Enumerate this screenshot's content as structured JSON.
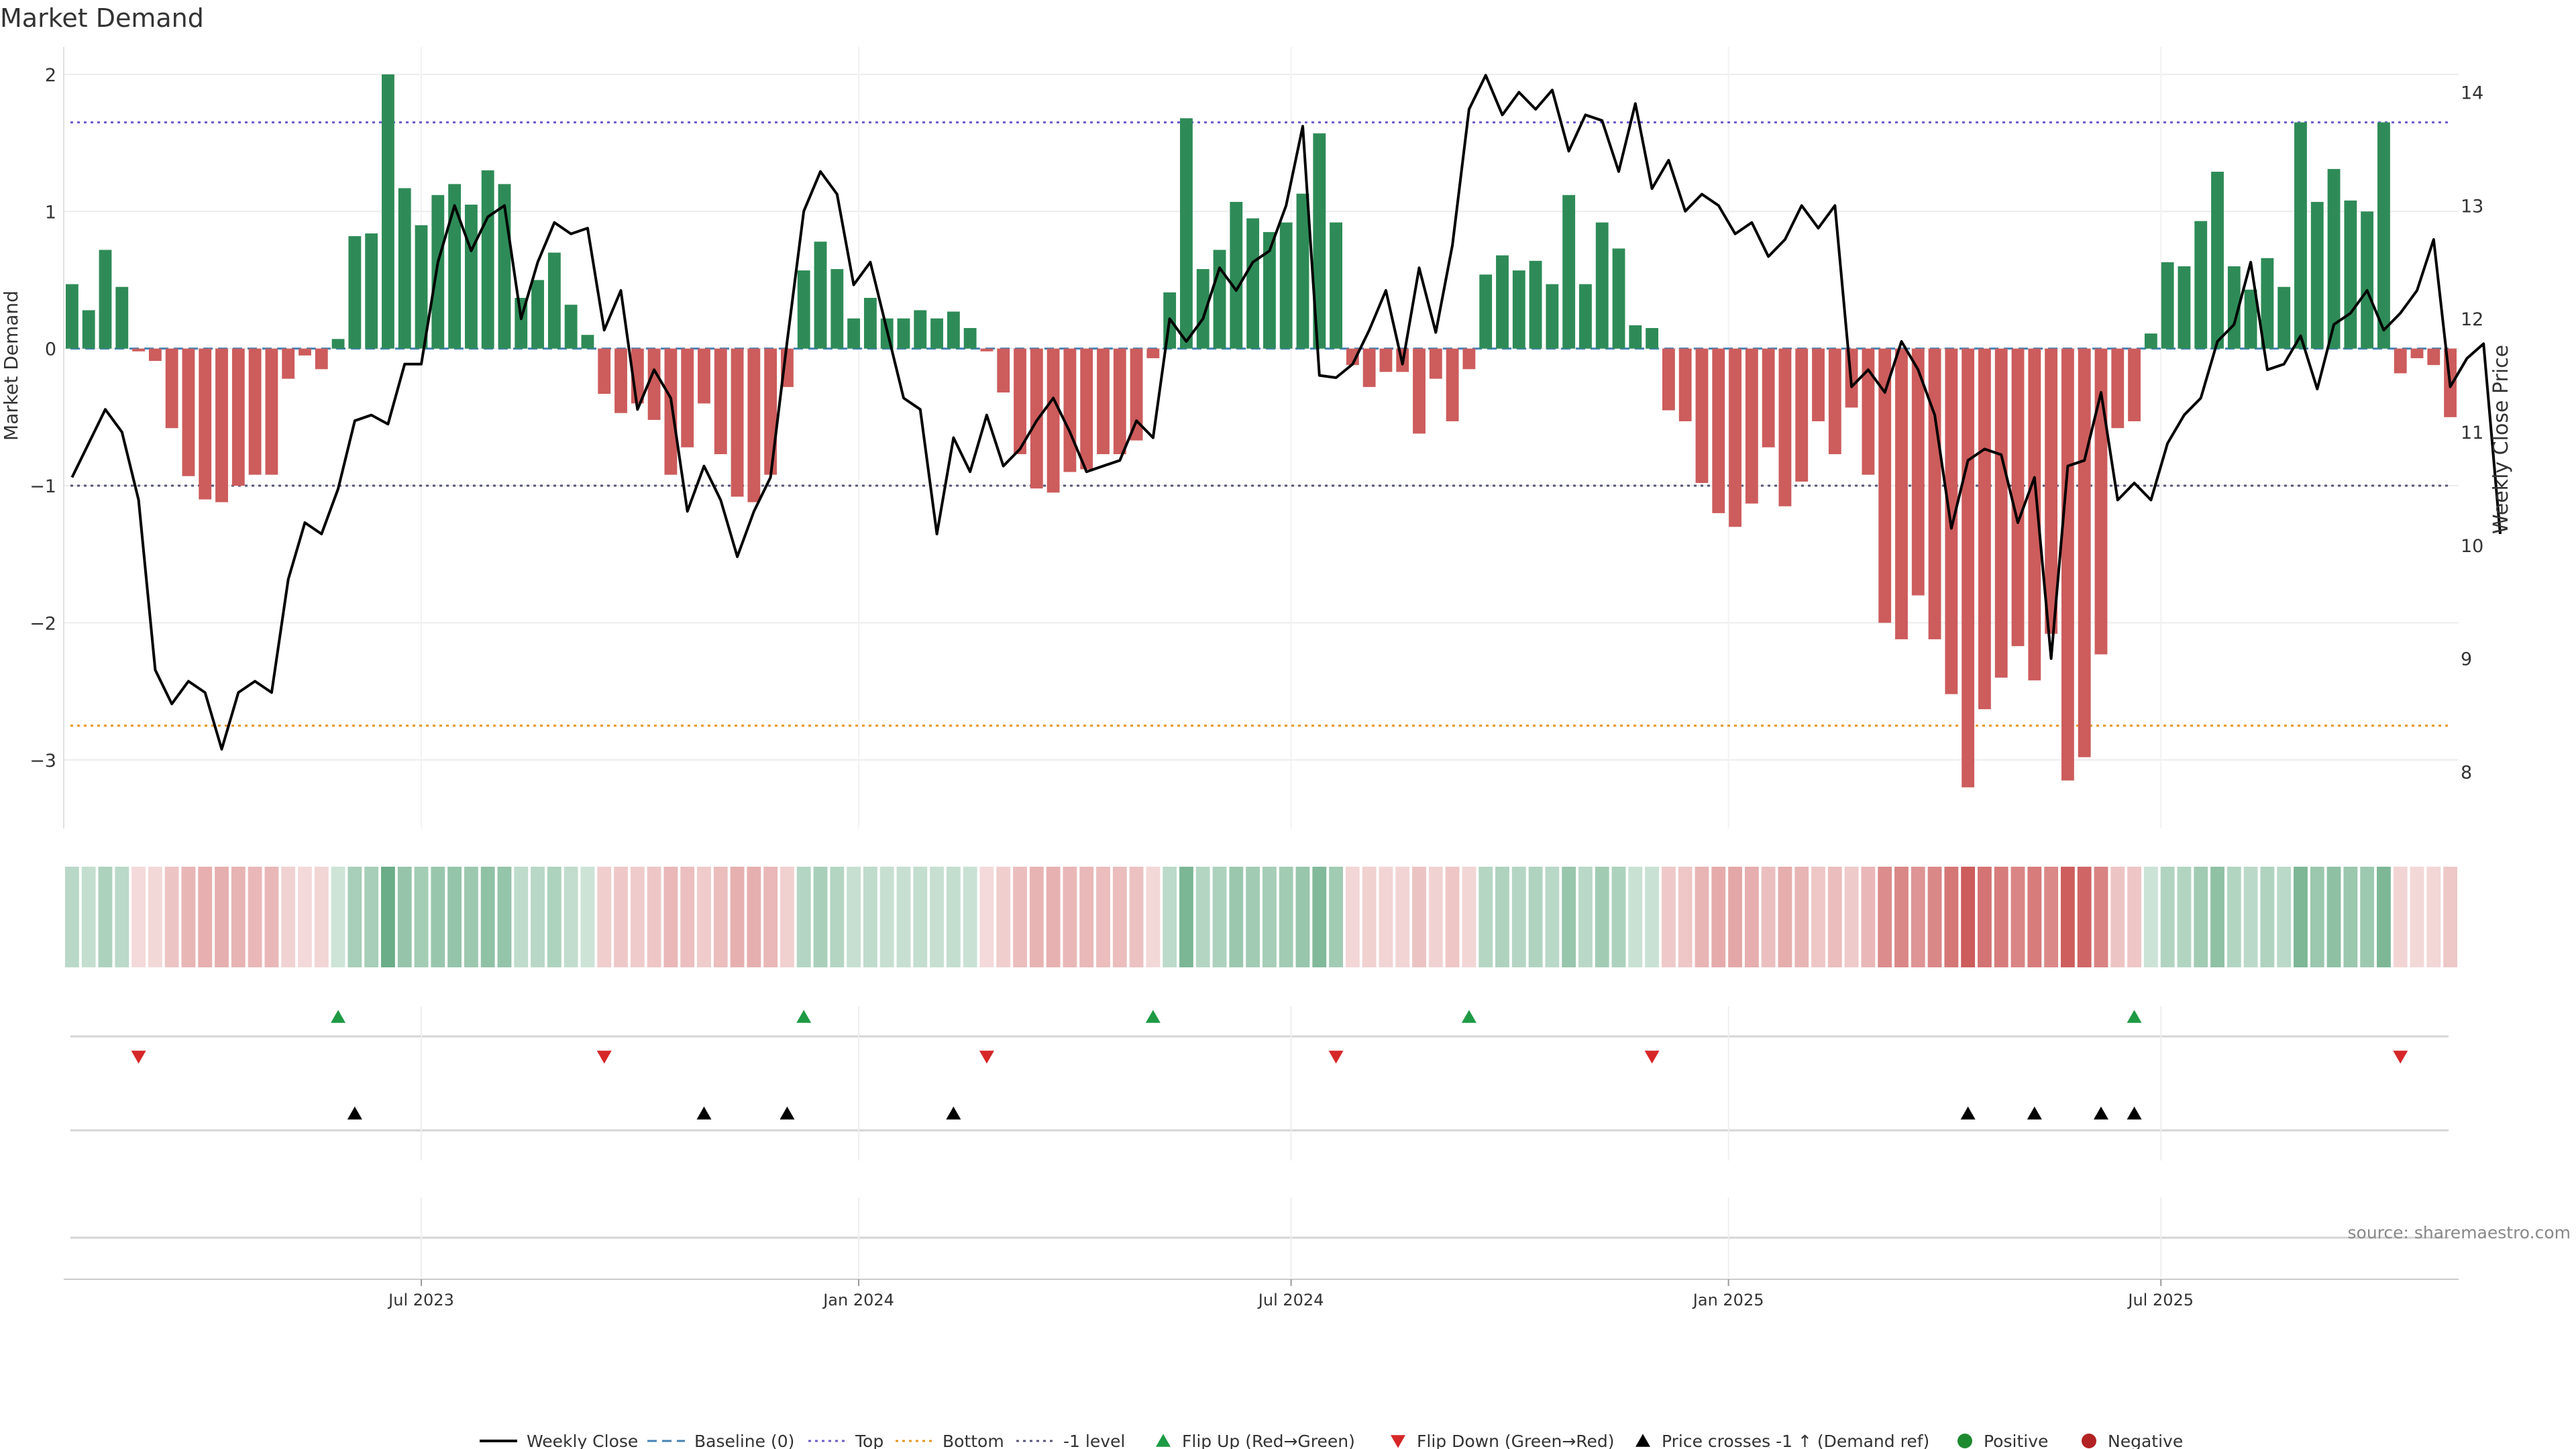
{
  "chart_data": {
    "type": "bar",
    "title": "Market Demand",
    "ylabel_left": "Market Demand",
    "ylabel_right": "Weekly Close Price",
    "source": "source: sharemaestro.com",
    "ylim_left": [
      -3.5,
      2.2
    ],
    "ylim_right": [
      7.5,
      14.4
    ],
    "yticks_left": [
      2,
      1,
      0,
      -1,
      -2,
      -3
    ],
    "yticks_right": [
      14,
      13,
      12,
      11,
      10,
      9,
      8
    ],
    "yticks_left_labels": [
      "2",
      "1",
      "0",
      "−1",
      "−2",
      "−3"
    ],
    "yticks_right_labels": [
      "14",
      "13",
      "12",
      "11",
      "10",
      "9",
      "8"
    ],
    "x_range_weeks": [
      -0.5,
      143.5
    ],
    "xticks": [
      {
        "label": "Jul 2023",
        "week": 21
      },
      {
        "label": "Jan 2024",
        "week": 47.3
      },
      {
        "label": "Jul 2024",
        "week": 73.3
      },
      {
        "label": "Jan 2025",
        "week": 99.6
      },
      {
        "label": "Jul 2025",
        "week": 125.6
      }
    ],
    "reference_lines": {
      "top": 1.65,
      "bottom": -2.75,
      "minus_one": -1,
      "baseline": 0
    },
    "colors": {
      "positive": "#2e8b57",
      "negative": "#cd5c5c",
      "price": "#000000",
      "top": "#6a5acd",
      "bottom": "#e69520",
      "minus_one": "#555577",
      "baseline": "#4682b4",
      "flip_up": "#1e9a45",
      "flip_down": "#d62728",
      "cross": "#000000",
      "positive_dot": "#1e8a30",
      "negative_dot": "#b22222"
    },
    "demand": [
      0.47,
      0.28,
      0.72,
      0.45,
      -0.02,
      -0.09,
      -0.58,
      -0.93,
      -1.1,
      -1.12,
      -1.0,
      -0.92,
      -0.92,
      -0.22,
      -0.05,
      -0.15,
      0.07,
      0.82,
      0.84,
      2.0,
      1.17,
      0.9,
      1.12,
      1.2,
      1.05,
      1.3,
      1.2,
      0.37,
      0.5,
      0.7,
      0.32,
      0.1,
      -0.33,
      -0.47,
      -0.4,
      -0.52,
      -0.92,
      -0.72,
      -0.4,
      -0.77,
      -1.08,
      -1.12,
      -0.92,
      -0.28,
      0.57,
      0.78,
      0.58,
      0.22,
      0.37,
      0.22,
      0.22,
      0.28,
      0.22,
      0.27,
      0.15,
      -0.02,
      -0.32,
      -0.77,
      -1.02,
      -1.05,
      -0.9,
      -0.88,
      -0.77,
      -0.77,
      -0.67,
      -0.07,
      0.41,
      1.68,
      0.58,
      0.72,
      1.07,
      0.95,
      0.85,
      0.92,
      1.13,
      1.57,
      0.92,
      -0.12,
      -0.28,
      -0.17,
      -0.17,
      -0.62,
      -0.22,
      -0.53,
      -0.15,
      0.54,
      0.68,
      0.57,
      0.64,
      0.47,
      1.12,
      0.47,
      0.92,
      0.73,
      0.17,
      0.15,
      -0.45,
      -0.53,
      -0.98,
      -1.2,
      -1.3,
      -1.13,
      -0.72,
      -1.15,
      -0.97,
      -0.53,
      -0.77,
      -0.43,
      -0.92,
      -2.0,
      -2.12,
      -1.8,
      -2.12,
      -2.52,
      -3.2,
      -2.63,
      -2.4,
      -2.17,
      -2.42,
      -2.08,
      -3.15,
      -2.98,
      -2.23,
      -0.58,
      -0.53,
      0.11,
      0.63,
      0.6,
      0.93,
      1.29,
      0.6,
      0.43,
      0.66,
      0.45,
      1.65,
      1.07,
      1.31,
      1.08,
      1.0,
      1.65,
      -0.18,
      -0.07,
      -0.12,
      -0.5
    ],
    "close": [
      10.6,
      10.9,
      11.2,
      11.0,
      10.4,
      8.9,
      8.6,
      8.8,
      8.7,
      8.2,
      8.7,
      8.8,
      8.7,
      9.7,
      10.2,
      10.1,
      10.5,
      11.1,
      11.15,
      11.07,
      11.6,
      11.6,
      12.5,
      13.0,
      12.6,
      12.9,
      13.0,
      12.0,
      12.5,
      12.85,
      12.75,
      12.8,
      11.9,
      12.25,
      11.2,
      11.55,
      11.3,
      10.3,
      10.7,
      10.4,
      9.9,
      10.3,
      10.6,
      11.8,
      12.95,
      13.3,
      13.1,
      12.3,
      12.5,
      11.9,
      11.3,
      11.2,
      10.1,
      10.95,
      10.65,
      11.15,
      10.7,
      10.85,
      11.1,
      11.3,
      11.0,
      10.65,
      10.7,
      10.75,
      11.1,
      10.95,
      12.0,
      11.8,
      12.0,
      12.45,
      12.25,
      12.5,
      12.6,
      13.0,
      13.7,
      11.5,
      11.48,
      11.6,
      11.9,
      12.25,
      11.6,
      12.45,
      11.88,
      12.65,
      13.85,
      14.15,
      13.8,
      14.0,
      13.85,
      14.02,
      13.48,
      13.8,
      13.75,
      13.3,
      13.9,
      13.15,
      13.4,
      12.95,
      13.1,
      13.0,
      12.75,
      12.85,
      12.55,
      12.7,
      13.0,
      12.8,
      13.0,
      11.4,
      11.55,
      11.35,
      11.8,
      11.55,
      11.15,
      10.15,
      10.75,
      10.85,
      10.8,
      10.2,
      10.6,
      9.0,
      10.7,
      10.75,
      11.35,
      10.4,
      10.55,
      10.4,
      10.9,
      11.15,
      11.3,
      11.8,
      11.95,
      12.5,
      11.55,
      11.6,
      11.85,
      11.38,
      11.95,
      12.05,
      12.25,
      11.9,
      12.05,
      12.25,
      12.7,
      11.4,
      11.65,
      11.78,
      10.1
    ],
    "flip_up_weeks": [
      16,
      44,
      65,
      84,
      124
    ],
    "flip_down_weeks": [
      4,
      32,
      55,
      76,
      95,
      140
    ],
    "cross_weeks": [
      17,
      38,
      43,
      53,
      114,
      118,
      122,
      124
    ],
    "legend": [
      {
        "label": "Weekly Close",
        "kind": "line"
      },
      {
        "label": "Baseline (0)",
        "kind": "dash"
      },
      {
        "label": "Top",
        "kind": "dot-top"
      },
      {
        "label": "Bottom",
        "kind": "dot-bottom"
      },
      {
        "label": "-1 level",
        "kind": "dot-minus"
      },
      {
        "label": "Flip Up (Red→Green)",
        "kind": "tri-up"
      },
      {
        "label": "Flip Down (Green→Red)",
        "kind": "tri-down"
      },
      {
        "label": "Price crosses -1 ↑ (Demand ref)",
        "kind": "tri-cross"
      },
      {
        "label": "Positive",
        "kind": "dot-pos"
      },
      {
        "label": "Negative",
        "kind": "dot-neg"
      }
    ]
  }
}
